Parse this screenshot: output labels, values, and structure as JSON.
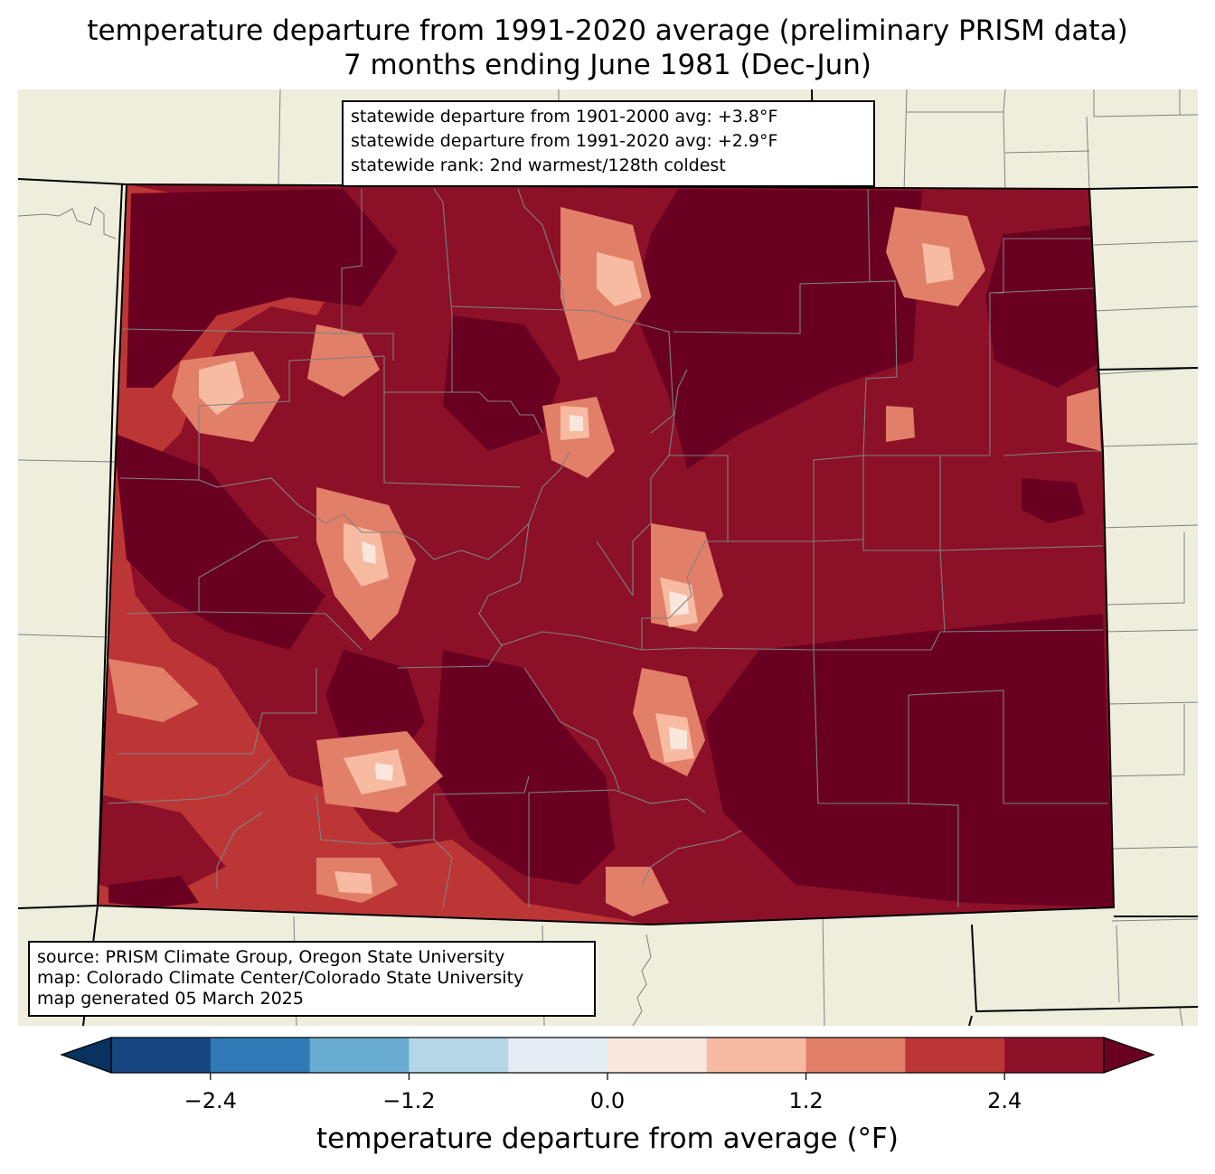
{
  "title": {
    "line1": "temperature departure from 1991-2020 average (preliminary PRISM data)",
    "line2": "7 months ending June 1981 (Dec-Jun)"
  },
  "stats_box": {
    "line1": "statewide departure from 1901-2000 avg: +3.8°F",
    "line2": "statewide departure from 1991-2020 avg: +2.9°F",
    "line3": "statewide rank: 2nd warmest/128th coldest"
  },
  "source_box": {
    "line1": "source: PRISM Climate Group, Oregon State University",
    "line2": "map: Colorado Climate Center/Colorado State University",
    "line3": "map generated 05 March 2025"
  },
  "colorbar": {
    "label": "temperature departure from average (°F)",
    "ticks": [
      "−2.4",
      "−1.2",
      "0.0",
      "1.2",
      "2.4"
    ],
    "bins": [
      {
        "range": "-3.0 to -2.4",
        "color": "#164580"
      },
      {
        "range": "-2.4 to -1.8",
        "color": "#2f7ab7"
      },
      {
        "range": "-1.8 to -1.2",
        "color": "#6aadd3"
      },
      {
        "range": "-1.2 to -0.6",
        "color": "#b4d6e7"
      },
      {
        "range": "-0.6 to 0.0",
        "color": "#e4edf3"
      },
      {
        "range": "0.0 to 0.6",
        "color": "#f9e6dc"
      },
      {
        "range": "0.6 to 1.2",
        "color": "#f7bba2"
      },
      {
        "range": "1.2 to 1.8",
        "color": "#e27f68"
      },
      {
        "range": "1.8 to 2.4",
        "color": "#bd3636"
      },
      {
        "range": "2.4 to 3.0",
        "color": "#8c1128"
      }
    ],
    "under_color": "#08325f",
    "over_color": "#6a0021"
  },
  "colors": {
    "land": "#efeedc",
    "border": "#000000",
    "county": "#808080"
  }
}
